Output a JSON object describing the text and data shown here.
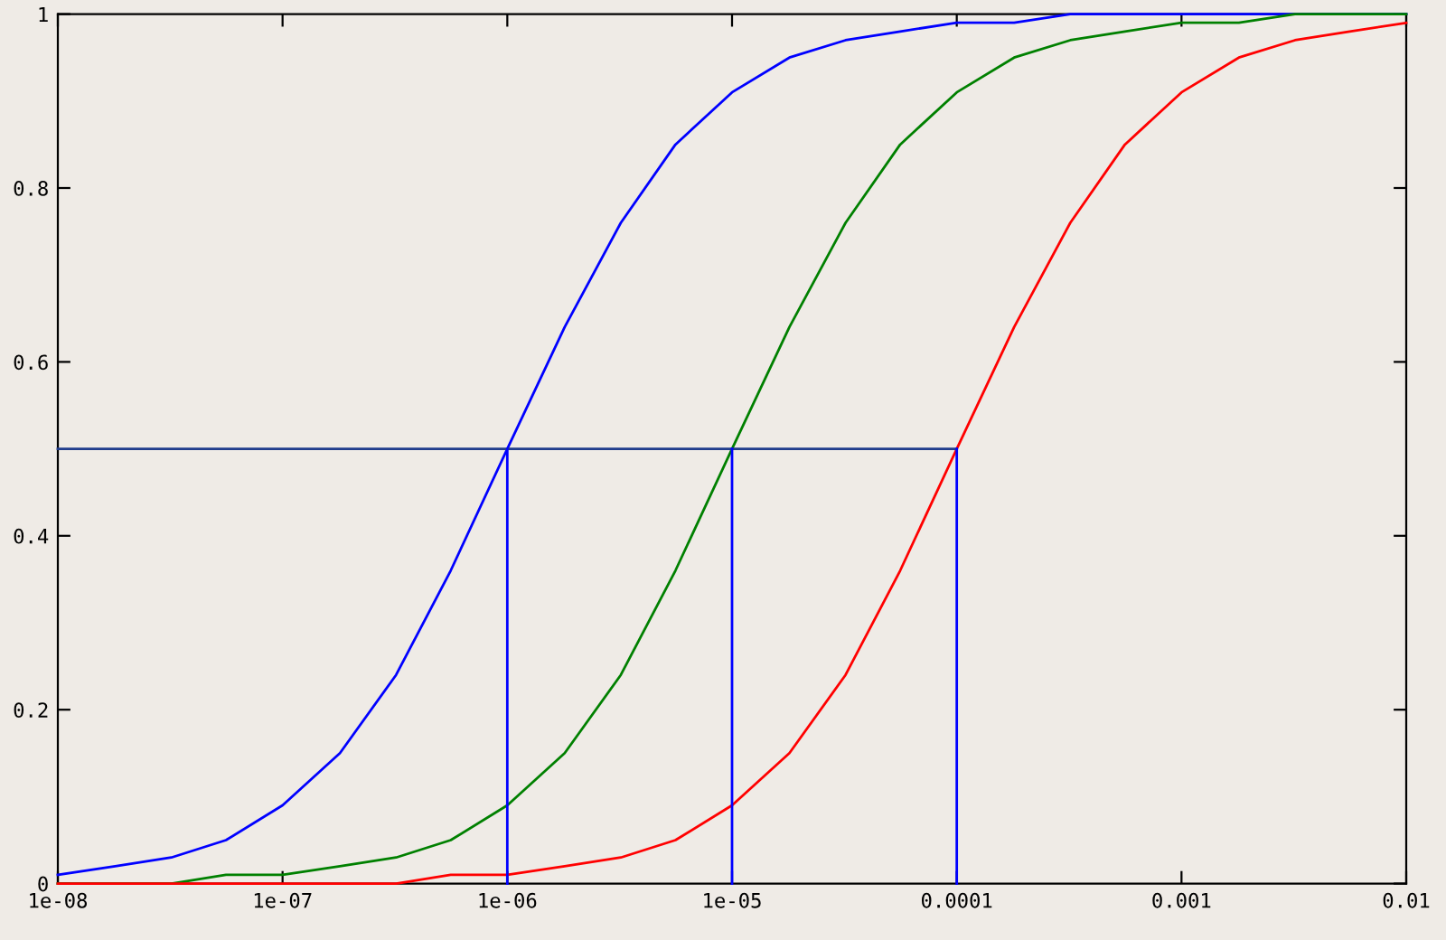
{
  "chart_data": {
    "type": "line",
    "x": [
      1e-08,
      1.8e-08,
      3.2e-08,
      5.6e-08,
      1e-07,
      1.8e-07,
      3.2e-07,
      5.6e-07,
      1e-06,
      1.8e-06,
      3.2e-06,
      5.6e-06,
      1e-05,
      1.8e-05,
      3.2e-05,
      5.6e-05,
      0.0001,
      0.00018,
      0.00032,
      0.00056,
      0.001,
      0.0018,
      0.0032,
      0.0056,
      0.01
    ],
    "series": [
      {
        "color": "#0000ff",
        "values": [
          0.01,
          0.02,
          0.03,
          0.05,
          0.09,
          0.15,
          0.24,
          0.36,
          0.5,
          0.64,
          0.76,
          0.85,
          0.91,
          0.95,
          0.97,
          0.98,
          0.99,
          0.99,
          1.0,
          1.0,
          1.0,
          1.0,
          1.0,
          1.0,
          1.0
        ]
      },
      {
        "color": "#008000",
        "values": [
          0,
          0,
          0,
          0.01,
          0.01,
          0.02,
          0.03,
          0.05,
          0.09,
          0.15,
          0.24,
          0.36,
          0.5,
          0.64,
          0.76,
          0.85,
          0.91,
          0.95,
          0.97,
          0.98,
          0.99,
          0.99,
          1.0,
          1.0,
          1.0
        ]
      },
      {
        "color": "#ff0000",
        "values": [
          0,
          0,
          0,
          0,
          0,
          0,
          0,
          0.01,
          0.01,
          0.02,
          0.03,
          0.05,
          0.09,
          0.15,
          0.24,
          0.36,
          0.5,
          0.64,
          0.76,
          0.85,
          0.91,
          0.95,
          0.97,
          0.98,
          0.99
        ]
      },
      {
        "color": "#203c8c",
        "x": [
          1e-08,
          0.0001
        ],
        "values": [
          0.5,
          0.5
        ]
      },
      {
        "color": "#0000ff",
        "x": [
          1e-06,
          1e-06
        ],
        "values": [
          0,
          0.5
        ]
      },
      {
        "color": "#0000ff",
        "x": [
          1e-05,
          1e-05
        ],
        "values": [
          0,
          0.5
        ]
      },
      {
        "color": "#0000ff",
        "x": [
          0.0001,
          0.0001
        ],
        "values": [
          0,
          0.5
        ]
      }
    ],
    "log": "x",
    "xlim": [
      1e-08,
      0.01
    ],
    "xticks": [
      {
        "value": 1e-08,
        "label": "1e-08"
      },
      {
        "value": 1e-07,
        "label": "1e-07"
      },
      {
        "value": 1e-06,
        "label": "1e-06"
      },
      {
        "value": 1e-05,
        "label": "1e-05"
      },
      {
        "value": 0.0001,
        "label": "0.0001"
      },
      {
        "value": 0.001,
        "label": "0.001"
      },
      {
        "value": 0.01,
        "label": "0.01"
      }
    ],
    "ylim": [
      0,
      1
    ],
    "yticks": [
      0,
      0.2,
      0.4,
      0.6,
      0.8,
      1
    ],
    "grid": false,
    "marker": "none",
    "line_style": "solid"
  }
}
